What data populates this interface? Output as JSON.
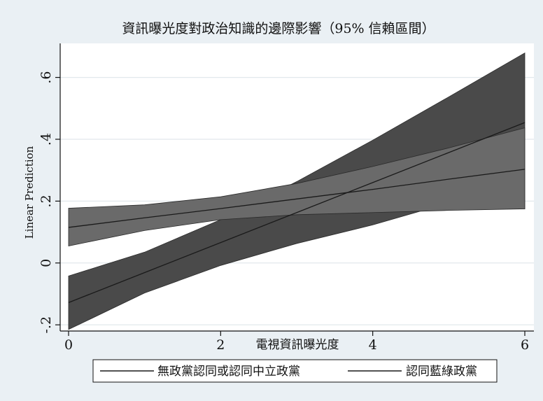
{
  "chart_data": {
    "type": "area",
    "title": "資訊曝光度對政治知識的邊際影響（95% 信賴區間）",
    "xlabel": "電視資訊曝光度",
    "ylabel": "Linear Prediction",
    "xlim": [
      0,
      6
    ],
    "ylim": [
      -0.22,
      0.71
    ],
    "x_ticks": [
      0,
      2,
      4,
      6
    ],
    "x_tick_labels": [
      "0",
      "2",
      "4",
      "6"
    ],
    "y_ticks": [
      -0.2,
      0,
      0.2,
      0.4,
      0.6
    ],
    "y_tick_labels": [
      "-.2",
      "0",
      ".2",
      ".4",
      ".6"
    ],
    "grid": true,
    "legend": "bottom",
    "colors": {
      "background": "#eaf0f4",
      "plot_background": "#ffffff",
      "grid": "#e2e8ec",
      "band_nonpartisan": "#4a4a4a",
      "band_panblue": "#6a6a6a",
      "line": "#1a1a1a"
    },
    "series": [
      {
        "name": "無政黨認同或認同中立政黨",
        "x": [
          0,
          1,
          2,
          3,
          4,
          5,
          6
        ],
        "prediction": [
          -0.128,
          -0.031,
          0.066,
          0.163,
          0.26,
          0.357,
          0.454
        ],
        "ci_lower": [
          -0.215,
          -0.097,
          -0.008,
          0.063,
          0.123,
          0.194,
          0.175
        ],
        "ci_upper": [
          -0.042,
          0.035,
          0.14,
          0.263,
          0.397,
          0.537,
          0.679
        ]
      },
      {
        "name": "認同藍綠政黨",
        "x": [
          0,
          1,
          2,
          3,
          4,
          5,
          6
        ],
        "prediction": [
          0.115,
          0.146,
          0.176,
          0.207,
          0.238,
          0.271,
          0.303
        ],
        "ci_lower": [
          0.055,
          0.105,
          0.14,
          0.156,
          0.163,
          0.17,
          0.175
        ],
        "ci_upper": [
          0.177,
          0.188,
          0.214,
          0.257,
          0.312,
          0.372,
          0.437
        ]
      }
    ]
  }
}
